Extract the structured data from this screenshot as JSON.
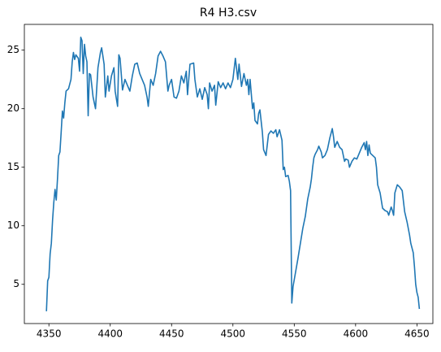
{
  "chart_data": {
    "type": "line",
    "title": "R4 H3.csv",
    "color": "#1f77b4",
    "grid": false,
    "xlim": [
      4330,
      4663
    ],
    "ylim": [
      1.65,
      27.2
    ],
    "xticks": [
      4350,
      4400,
      4450,
      4500,
      4550,
      4600,
      4650
    ],
    "yticks": [
      5,
      10,
      15,
      20,
      25
    ],
    "x": [
      4348,
      4349,
      4350,
      4351,
      4352,
      4353,
      4354,
      4355,
      4356,
      4357,
      4358,
      4359,
      4360,
      4361,
      4362,
      4363,
      4364,
      4366,
      4368,
      4369,
      4370,
      4371,
      4372,
      4374,
      4375,
      4376,
      4377,
      4378,
      4379,
      4380,
      4381,
      4382,
      4383,
      4384,
      4386,
      4388,
      4390,
      4392,
      4393,
      4395,
      4396,
      4398,
      4399,
      4401,
      4403,
      4404,
      4406,
      4407,
      4408,
      4410,
      4412,
      4414,
      4416,
      4418,
      4420,
      4422,
      4424,
      4426,
      4428,
      4430,
      4431,
      4433,
      4435,
      4437,
      4439,
      4441,
      4443,
      4445,
      4447,
      4448,
      4450,
      4452,
      4454,
      4456,
      4458,
      4460,
      4462,
      4463,
      4465,
      4468,
      4469,
      4471,
      4473,
      4475,
      4477,
      4479,
      4480,
      4481,
      4483,
      4485,
      4486,
      4488,
      4490,
      4492,
      4494,
      4496,
      4498,
      4500,
      4502,
      4504,
      4505,
      4507,
      4509,
      4511,
      4512,
      4513,
      4514,
      4516,
      4517,
      4518,
      4520,
      4521,
      4522,
      4524,
      4525,
      4527,
      4529,
      4531,
      4533,
      4535,
      4536,
      4538,
      4540,
      4541,
      4542,
      4543,
      4545,
      4546,
      4547,
      4548,
      4549,
      4551,
      4553,
      4555,
      4557,
      4559,
      4561,
      4563,
      4564,
      4565,
      4566,
      4567,
      4569,
      4570,
      4572,
      4573,
      4575,
      4577,
      4579,
      4581,
      4582,
      4583,
      4585,
      4587,
      4589,
      4591,
      4592,
      4594,
      4595,
      4597,
      4599,
      4601,
      4603,
      4605,
      4607,
      4608,
      4609,
      4610,
      4611,
      4612,
      4614,
      4616,
      4617,
      4618,
      4620,
      4622,
      4624,
      4626,
      4627,
      4629,
      4630,
      4631,
      4632,
      4634,
      4636,
      4638,
      4640,
      4642,
      4644,
      4645,
      4647,
      4648,
      4649,
      4650,
      4651,
      4652
    ],
    "values": [
      2.7,
      5.3,
      5.6,
      7.6,
      8.5,
      10.5,
      12.0,
      13.1,
      12.2,
      14.0,
      16.0,
      16.3,
      18.0,
      19.8,
      19.2,
      20.5,
      21.5,
      21.7,
      22.5,
      24.0,
      24.8,
      24.2,
      24.6,
      24.3,
      23.2,
      26.1,
      25.8,
      23.0,
      25.5,
      24.5,
      24.0,
      19.4,
      23.0,
      22.9,
      21.0,
      20.0,
      23.5,
      24.8,
      25.2,
      23.8,
      21.0,
      22.8,
      21.5,
      22.8,
      23.5,
      21.5,
      20.2,
      24.6,
      24.3,
      21.6,
      22.5,
      22.0,
      21.5,
      22.8,
      23.8,
      23.9,
      23.0,
      22.5,
      22.0,
      21.0,
      20.2,
      22.5,
      22.0,
      23.0,
      24.5,
      24.9,
      24.5,
      24.0,
      21.5,
      22.0,
      22.5,
      21.0,
      20.9,
      21.5,
      22.8,
      22.2,
      23.2,
      21.2,
      23.8,
      23.9,
      22.5,
      21.0,
      21.7,
      20.8,
      21.8,
      21.2,
      20.0,
      22.2,
      21.5,
      22.0,
      20.3,
      22.3,
      21.8,
      22.2,
      21.7,
      22.2,
      21.8,
      22.5,
      24.3,
      22.5,
      23.8,
      21.9,
      23.0,
      22.0,
      22.5,
      21.2,
      22.5,
      20.0,
      20.5,
      19.0,
      18.7,
      19.6,
      19.9,
      18.0,
      16.5,
      16.0,
      17.8,
      18.1,
      17.9,
      18.2,
      17.6,
      18.2,
      17.3,
      14.8,
      15.0,
      14.2,
      14.3,
      13.8,
      13.0,
      3.4,
      4.8,
      6.0,
      7.2,
      8.5,
      9.8,
      10.8,
      12.3,
      13.3,
      14.0,
      15.0,
      15.8,
      16.1,
      16.5,
      16.8,
      16.3,
      15.8,
      16.0,
      16.5,
      17.5,
      18.3,
      17.6,
      16.7,
      17.2,
      16.7,
      16.5,
      15.5,
      15.7,
      15.6,
      15.0,
      15.5,
      15.8,
      15.7,
      16.2,
      16.7,
      17.1,
      16.5,
      17.2,
      16.0,
      16.9,
      16.2,
      16.0,
      15.8,
      15.0,
      13.5,
      12.8,
      11.5,
      11.3,
      11.2,
      10.9,
      11.6,
      11.3,
      10.9,
      12.8,
      13.5,
      13.3,
      13.0,
      11.2,
      10.3,
      9.2,
      8.5,
      7.7,
      6.5,
      5.0,
      4.3,
      3.9,
      2.9
    ]
  }
}
